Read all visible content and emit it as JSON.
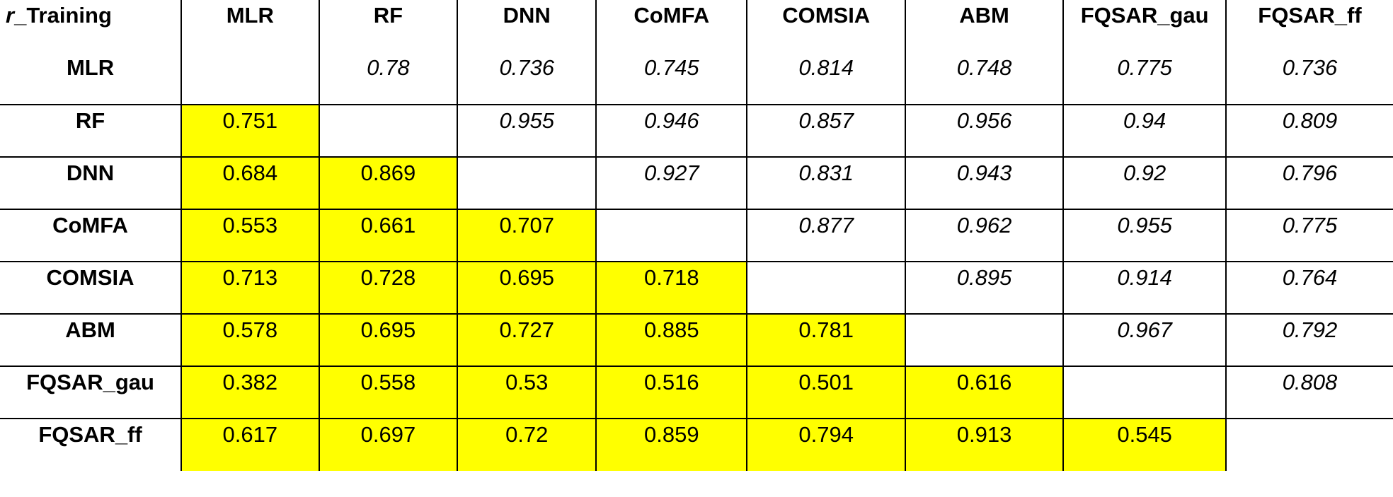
{
  "corner_label": {
    "italic": "r",
    "rest": "_Training"
  },
  "colors": {
    "lower_highlight": "#ffff00",
    "border": "#000000"
  },
  "chart_data": {
    "type": "table",
    "title": "",
    "columns": [
      "MLR",
      "RF",
      "DNN",
      "CoMFA",
      "COMSIA",
      "ABM",
      "FQSAR_gau",
      "FQSAR_ff"
    ],
    "rows": [
      "MLR",
      "RF",
      "DNN",
      "CoMFA",
      "COMSIA",
      "ABM",
      "FQSAR_gau",
      "FQSAR_ff"
    ],
    "values": [
      [
        "",
        "0.78",
        "0.736",
        "0.745",
        "0.814",
        "0.748",
        "0.775",
        "0.736"
      ],
      [
        "0.751",
        "",
        "0.955",
        "0.946",
        "0.857",
        "0.956",
        "0.94",
        "0.809"
      ],
      [
        "0.684",
        "0.869",
        "",
        "0.927",
        "0.831",
        "0.943",
        "0.92",
        "0.796"
      ],
      [
        "0.553",
        "0.661",
        "0.707",
        "",
        "0.877",
        "0.962",
        "0.955",
        "0.775"
      ],
      [
        "0.713",
        "0.728",
        "0.695",
        "0.718",
        "",
        "0.895",
        "0.914",
        "0.764"
      ],
      [
        "0.578",
        "0.695",
        "0.727",
        "0.885",
        "0.781",
        "",
        "0.967",
        "0.792"
      ],
      [
        "0.382",
        "0.558",
        "0.53",
        "0.516",
        "0.501",
        "0.616",
        "",
        "0.808"
      ],
      [
        "0.617",
        "0.697",
        "0.72",
        "0.859",
        "0.794",
        "0.913",
        "0.545",
        ""
      ]
    ],
    "lower_triangle_highlighted": true,
    "upper_triangle_italic": true
  }
}
